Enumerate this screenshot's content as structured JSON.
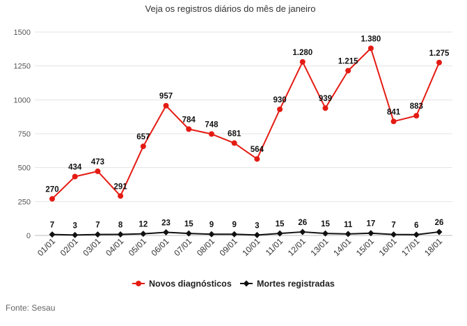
{
  "chart_data": {
    "type": "line",
    "title": "Veja os registros diários do mês de janeiro",
    "categories": [
      "01/01",
      "02/01",
      "03/01",
      "04/01",
      "05/01",
      "06/01",
      "07/01",
      "08/01",
      "09/01",
      "10/01",
      "11/01",
      "12/01",
      "13/01",
      "14/01",
      "15/01",
      "16/01",
      "17/01",
      "18/01"
    ],
    "series": [
      {
        "name": "Novos diagnósticos",
        "color": "#e41b13",
        "marker": "circle",
        "values": [
          270,
          434,
          473,
          291,
          657,
          957,
          784,
          748,
          681,
          564,
          930,
          1280,
          939,
          1215,
          1380,
          841,
          883,
          1275
        ],
        "labels": [
          "270",
          "434",
          "473",
          "291",
          "657",
          "957",
          "784",
          "748",
          "681",
          "564",
          "930",
          "1.280",
          "939",
          "1.215",
          "1.380",
          "841",
          "883",
          "1.275"
        ]
      },
      {
        "name": "Mortes registradas",
        "color": "#111111",
        "marker": "diamond",
        "values": [
          7,
          3,
          7,
          8,
          12,
          23,
          15,
          9,
          9,
          3,
          15,
          26,
          15,
          11,
          17,
          7,
          6,
          26
        ],
        "labels": [
          "7",
          "3",
          "7",
          "8",
          "12",
          "23",
          "15",
          "9",
          "9",
          "3",
          "15",
          "26",
          "15",
          "11",
          "17",
          "7",
          "6",
          "26"
        ]
      }
    ],
    "ylim": [
      0,
      1500
    ],
    "yticks": [
      0,
      250,
      500,
      750,
      1000,
      1250,
      1500
    ],
    "ytick_labels": [
      "0",
      "250",
      "500",
      "750",
      "1000",
      "1250",
      "1500"
    ],
    "grid": true,
    "legend_position": "bottom-center",
    "xlabel": "",
    "ylabel": ""
  },
  "source": "Fonte: Sesau"
}
